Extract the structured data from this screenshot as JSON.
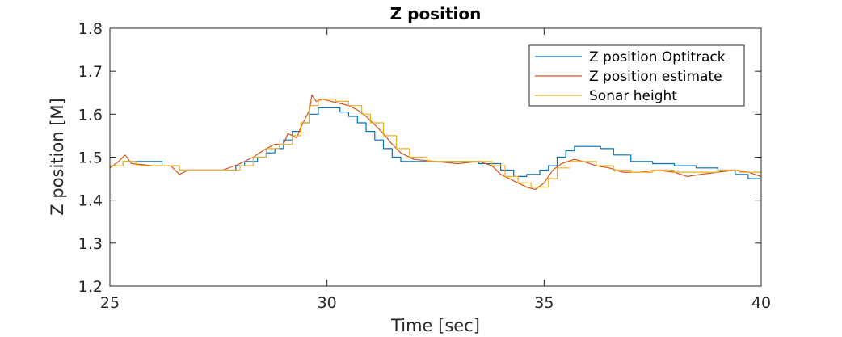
{
  "chart_data": {
    "type": "line",
    "title": "Z position",
    "xlabel": "Time [sec]",
    "ylabel": "Z position [M]",
    "xlim": [
      25,
      40
    ],
    "ylim": [
      1.2,
      1.8
    ],
    "xticks": [
      "25",
      "30",
      "35",
      "40"
    ],
    "yticks": [
      "1.2",
      "1.3",
      "1.4",
      "1.5",
      "1.6",
      "1.7",
      "1.8"
    ],
    "grid": false,
    "legend_position": "top-right",
    "series": [
      {
        "name": "Z position Optitrack",
        "color": "#0072BD",
        "step": true,
        "points": [
          [
            25.0,
            1.48
          ],
          [
            25.3,
            1.49
          ],
          [
            26.0,
            1.49
          ],
          [
            26.2,
            1.48
          ],
          [
            26.6,
            1.47
          ],
          [
            27.2,
            1.47
          ],
          [
            27.6,
            1.47
          ],
          [
            27.9,
            1.48
          ],
          [
            28.1,
            1.49
          ],
          [
            28.4,
            1.5
          ],
          [
            28.6,
            1.51
          ],
          [
            28.8,
            1.52
          ],
          [
            29.0,
            1.54
          ],
          [
            29.2,
            1.56
          ],
          [
            29.4,
            1.58
          ],
          [
            29.6,
            1.6
          ],
          [
            29.8,
            1.615
          ],
          [
            30.1,
            1.615
          ],
          [
            30.3,
            1.605
          ],
          [
            30.5,
            1.595
          ],
          [
            30.7,
            1.58
          ],
          [
            30.9,
            1.56
          ],
          [
            31.1,
            1.54
          ],
          [
            31.3,
            1.52
          ],
          [
            31.5,
            1.5
          ],
          [
            31.7,
            1.49
          ],
          [
            32.0,
            1.49
          ],
          [
            32.5,
            1.49
          ],
          [
            33.0,
            1.49
          ],
          [
            33.5,
            1.485
          ],
          [
            34.0,
            1.47
          ],
          [
            34.3,
            1.455
          ],
          [
            34.6,
            1.46
          ],
          [
            34.9,
            1.47
          ],
          [
            35.1,
            1.48
          ],
          [
            35.3,
            1.5
          ],
          [
            35.5,
            1.515
          ],
          [
            35.7,
            1.525
          ],
          [
            36.0,
            1.525
          ],
          [
            36.3,
            1.52
          ],
          [
            36.6,
            1.505
          ],
          [
            37.0,
            1.49
          ],
          [
            37.5,
            1.485
          ],
          [
            38.0,
            1.48
          ],
          [
            38.5,
            1.475
          ],
          [
            39.0,
            1.47
          ],
          [
            39.4,
            1.46
          ],
          [
            39.7,
            1.45
          ],
          [
            40.0,
            1.445
          ]
        ]
      },
      {
        "name": "Z position estimate",
        "color": "#D95319",
        "step": false,
        "points": [
          [
            25.0,
            1.475
          ],
          [
            25.2,
            1.49
          ],
          [
            25.35,
            1.505
          ],
          [
            25.5,
            1.485
          ],
          [
            26.0,
            1.48
          ],
          [
            26.4,
            1.48
          ],
          [
            26.6,
            1.46
          ],
          [
            26.8,
            1.47
          ],
          [
            27.3,
            1.47
          ],
          [
            27.6,
            1.47
          ],
          [
            28.0,
            1.485
          ],
          [
            28.3,
            1.5
          ],
          [
            28.6,
            1.52
          ],
          [
            28.8,
            1.53
          ],
          [
            29.0,
            1.53
          ],
          [
            29.1,
            1.555
          ],
          [
            29.3,
            1.545
          ],
          [
            29.4,
            1.57
          ],
          [
            29.5,
            1.59
          ],
          [
            29.6,
            1.61
          ],
          [
            29.65,
            1.645
          ],
          [
            29.75,
            1.63
          ],
          [
            29.9,
            1.635
          ],
          [
            30.1,
            1.63
          ],
          [
            30.3,
            1.625
          ],
          [
            30.5,
            1.62
          ],
          [
            30.7,
            1.61
          ],
          [
            30.9,
            1.595
          ],
          [
            31.1,
            1.575
          ],
          [
            31.3,
            1.555
          ],
          [
            31.5,
            1.53
          ],
          [
            31.7,
            1.51
          ],
          [
            32.0,
            1.495
          ],
          [
            32.5,
            1.49
          ],
          [
            33.0,
            1.485
          ],
          [
            33.5,
            1.49
          ],
          [
            33.8,
            1.48
          ],
          [
            34.0,
            1.46
          ],
          [
            34.2,
            1.45
          ],
          [
            34.4,
            1.44
          ],
          [
            34.6,
            1.43
          ],
          [
            34.8,
            1.425
          ],
          [
            35.0,
            1.44
          ],
          [
            35.2,
            1.47
          ],
          [
            35.4,
            1.485
          ],
          [
            35.7,
            1.495
          ],
          [
            35.9,
            1.49
          ],
          [
            36.2,
            1.48
          ],
          [
            36.5,
            1.475
          ],
          [
            36.8,
            1.465
          ],
          [
            37.2,
            1.465
          ],
          [
            37.6,
            1.47
          ],
          [
            38.0,
            1.465
          ],
          [
            38.3,
            1.455
          ],
          [
            38.6,
            1.46
          ],
          [
            39.0,
            1.465
          ],
          [
            39.4,
            1.47
          ],
          [
            39.7,
            1.465
          ],
          [
            40.0,
            1.455
          ]
        ]
      },
      {
        "name": "Sonar height",
        "color": "#EDB120",
        "step": true,
        "points": [
          [
            25.0,
            1.48
          ],
          [
            25.3,
            1.49
          ],
          [
            25.5,
            1.49
          ],
          [
            25.6,
            1.48
          ],
          [
            26.2,
            1.48
          ],
          [
            26.6,
            1.47
          ],
          [
            27.0,
            1.47
          ],
          [
            27.6,
            1.47
          ],
          [
            28.0,
            1.48
          ],
          [
            28.3,
            1.5
          ],
          [
            28.6,
            1.52
          ],
          [
            28.9,
            1.53
          ],
          [
            29.2,
            1.55
          ],
          [
            29.4,
            1.58
          ],
          [
            29.6,
            1.62
          ],
          [
            29.8,
            1.635
          ],
          [
            30.0,
            1.635
          ],
          [
            30.2,
            1.63
          ],
          [
            30.5,
            1.62
          ],
          [
            30.8,
            1.6
          ],
          [
            31.0,
            1.58
          ],
          [
            31.3,
            1.55
          ],
          [
            31.6,
            1.52
          ],
          [
            31.9,
            1.5
          ],
          [
            32.3,
            1.49
          ],
          [
            32.8,
            1.49
          ],
          [
            33.3,
            1.49
          ],
          [
            33.8,
            1.48
          ],
          [
            34.1,
            1.455
          ],
          [
            34.4,
            1.44
          ],
          [
            34.7,
            1.43
          ],
          [
            34.9,
            1.43
          ],
          [
            35.1,
            1.45
          ],
          [
            35.3,
            1.475
          ],
          [
            35.6,
            1.49
          ],
          [
            35.9,
            1.49
          ],
          [
            36.2,
            1.48
          ],
          [
            36.6,
            1.47
          ],
          [
            37.0,
            1.465
          ],
          [
            37.5,
            1.47
          ],
          [
            38.0,
            1.465
          ],
          [
            38.5,
            1.465
          ],
          [
            39.0,
            1.47
          ],
          [
            39.5,
            1.465
          ],
          [
            40.0,
            1.46
          ]
        ]
      }
    ]
  }
}
